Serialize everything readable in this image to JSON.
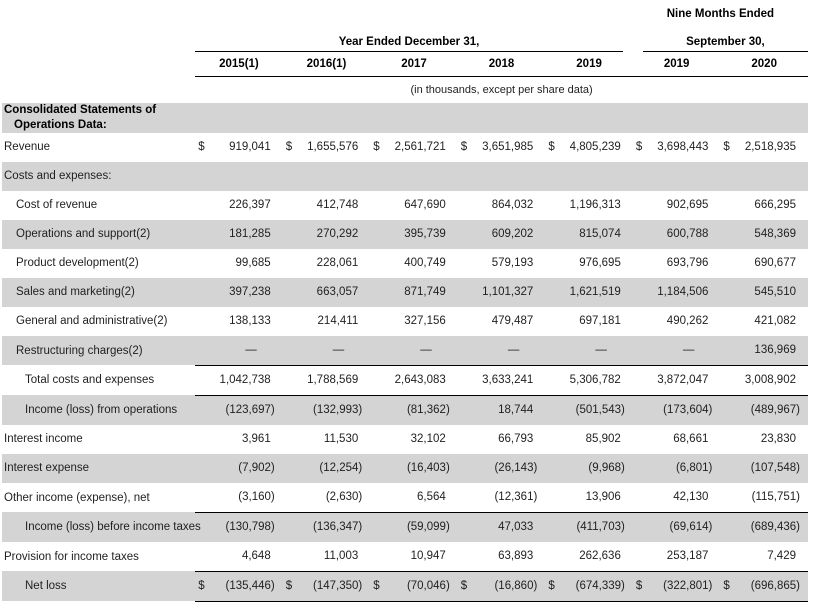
{
  "table": {
    "dollar": "$",
    "header": {
      "nine_months_label": "Nine Months Ended",
      "year_ended_label": "Year Ended December 31,",
      "september_label": "September 30,",
      "columns": [
        "2015(1)",
        "2016(1)",
        "2017",
        "2018",
        "2019",
        "2019",
        "2020"
      ],
      "units_note": "(in thousands, except per share data)"
    },
    "rows": [
      {
        "label": "Consolidated Statements of Operations Data:",
        "bold": true,
        "shade": true,
        "indent": 0,
        "dollar": false,
        "rule_below": false,
        "values": null
      },
      {
        "label": "Revenue",
        "bold": false,
        "shade": false,
        "indent": 0,
        "dollar": true,
        "rule_below": false,
        "values": [
          "919,041",
          "1,655,576",
          "2,561,721",
          "3,651,985",
          "4,805,239",
          "3,698,443",
          "2,518,935"
        ]
      },
      {
        "label": "Costs and expenses:",
        "bold": false,
        "shade": true,
        "indent": 0,
        "dollar": false,
        "rule_below": false,
        "values": null
      },
      {
        "label": "Cost of revenue",
        "bold": false,
        "shade": false,
        "indent": 1,
        "dollar": false,
        "rule_below": false,
        "values": [
          "226,397",
          "412,748",
          "647,690",
          "864,032",
          "1,196,313",
          "902,695",
          "666,295"
        ]
      },
      {
        "label": "Operations and support(2)",
        "bold": false,
        "shade": true,
        "indent": 1,
        "dollar": false,
        "rule_below": false,
        "values": [
          "181,285",
          "270,292",
          "395,739",
          "609,202",
          "815,074",
          "600,788",
          "548,369"
        ]
      },
      {
        "label": "Product development(2)",
        "bold": false,
        "shade": false,
        "indent": 1,
        "dollar": false,
        "rule_below": false,
        "values": [
          "99,685",
          "228,061",
          "400,749",
          "579,193",
          "976,695",
          "693,796",
          "690,677"
        ]
      },
      {
        "label": "Sales and marketing(2)",
        "bold": false,
        "shade": true,
        "indent": 1,
        "dollar": false,
        "rule_below": false,
        "values": [
          "397,238",
          "663,057",
          "871,749",
          "1,101,327",
          "1,621,519",
          "1,184,506",
          "545,510"
        ]
      },
      {
        "label": "General and administrative(2)",
        "bold": false,
        "shade": false,
        "indent": 1,
        "dollar": false,
        "rule_below": false,
        "values": [
          "138,133",
          "214,411",
          "327,156",
          "479,487",
          "697,181",
          "490,262",
          "421,082"
        ]
      },
      {
        "label": "Restructuring charges(2)",
        "bold": false,
        "shade": true,
        "indent": 1,
        "dollar": false,
        "rule_below": true,
        "values": [
          "—",
          "—",
          "—",
          "—",
          "—",
          "—",
          "136,969"
        ]
      },
      {
        "label": "Total costs and expenses",
        "bold": false,
        "shade": false,
        "indent": 2,
        "dollar": false,
        "rule_below": true,
        "values": [
          "1,042,738",
          "1,788,569",
          "2,643,083",
          "3,633,241",
          "5,306,782",
          "3,872,047",
          "3,008,902"
        ]
      },
      {
        "label": "Income (loss) from operations",
        "bold": false,
        "shade": true,
        "indent": 2,
        "dollar": false,
        "rule_below": false,
        "values": [
          "(123,697)",
          "(132,993)",
          "(81,362)",
          "18,744",
          "(501,543)",
          "(173,604)",
          "(489,967)"
        ]
      },
      {
        "label": "Interest income",
        "bold": false,
        "shade": false,
        "indent": 0,
        "dollar": false,
        "rule_below": false,
        "values": [
          "3,961",
          "11,530",
          "32,102",
          "66,793",
          "85,902",
          "68,661",
          "23,830"
        ]
      },
      {
        "label": "Interest expense",
        "bold": false,
        "shade": true,
        "indent": 0,
        "dollar": false,
        "rule_below": false,
        "values": [
          "(7,902)",
          "(12,254)",
          "(16,403)",
          "(26,143)",
          "(9,968)",
          "(6,801)",
          "(107,548)"
        ]
      },
      {
        "label": "Other income (expense), net",
        "bold": false,
        "shade": false,
        "indent": 0,
        "dollar": false,
        "rule_below": true,
        "values": [
          "(3,160)",
          "(2,630)",
          "6,564",
          "(12,361)",
          "13,906",
          "42,130",
          "(115,751)"
        ]
      },
      {
        "label": "Income (loss) before income taxes",
        "bold": false,
        "shade": true,
        "indent": 2,
        "dollar": false,
        "rule_below": false,
        "values": [
          "(130,798)",
          "(136,347)",
          "(59,099)",
          "47,033",
          "(411,703)",
          "(69,614)",
          "(689,436)"
        ]
      },
      {
        "label": "Provision for income taxes",
        "bold": false,
        "shade": false,
        "indent": 0,
        "dollar": false,
        "rule_below": true,
        "values": [
          "4,648",
          "11,003",
          "10,947",
          "63,893",
          "262,636",
          "253,187",
          "7,429"
        ]
      },
      {
        "label": "Net loss",
        "bold": false,
        "shade": true,
        "indent": 2,
        "dollar": true,
        "rule_below": true,
        "values": [
          "(135,446)",
          "(147,350)",
          "(70,046)",
          "(16,860)",
          "(674,339)",
          "(322,801)",
          "(696,865)"
        ]
      }
    ]
  }
}
